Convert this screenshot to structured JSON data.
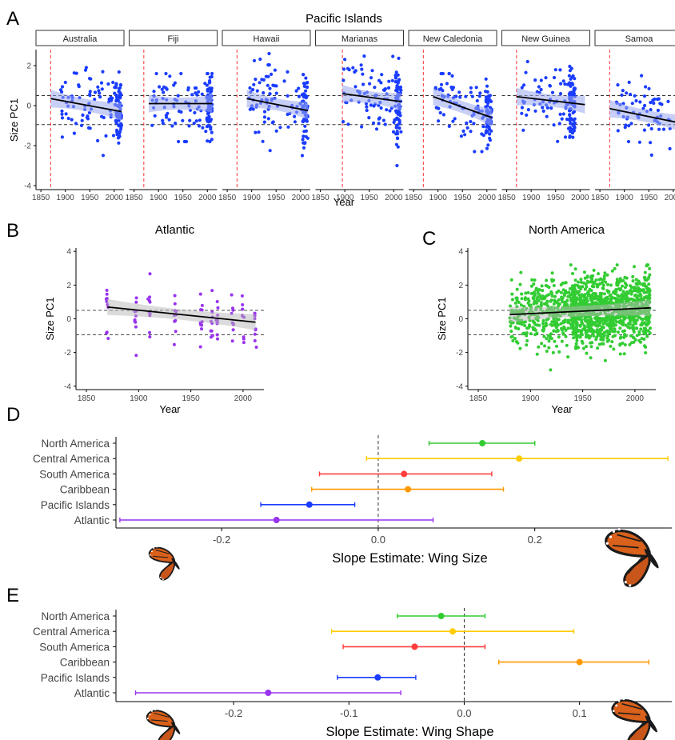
{
  "panels": {
    "A": "A",
    "B": "B",
    "C": "C",
    "D": "D",
    "E": "E"
  },
  "colors": {
    "North America": "#33cc33",
    "Central America": "#ffcc00",
    "South America": "#ff3b3b",
    "Caribbean": "#ff9900",
    "Pacific Islands": "#1a3cff",
    "Atlantic": "#9933ee",
    "threshold_line": "#ff3333",
    "ci_pacific": "#9aa8ee",
    "ci_other": "#b8b8b8"
  },
  "chart_data": [
    {
      "id": "A",
      "type": "scatter",
      "title": "Pacific Islands",
      "xlabel": "Year",
      "ylabel": "Size PC1",
      "xlim": [
        1840,
        2020
      ],
      "ylim": [
        -4.2,
        2.8
      ],
      "xticks": [
        "1850",
        "1900",
        "1950",
        "2000"
      ],
      "yticks": [
        "2",
        "0",
        "-2",
        "-4"
      ],
      "hlines": [
        0.5,
        -0.95
      ],
      "facets": [
        {
          "name": "Australia",
          "vline": 1870,
          "fit": [
            [
              1870,
              0.35
            ],
            [
              2015,
              -0.3
            ]
          ],
          "xmin": 1890,
          "xmax": 2015,
          "ymin": -3.6,
          "ymax": 1.9
        },
        {
          "name": "Fiji",
          "vline": 1870,
          "fit": [
            [
              1880,
              0.1
            ],
            [
              2010,
              0.1
            ]
          ],
          "xmin": 1880,
          "xmax": 2010,
          "ymin": -1.8,
          "ymax": 1.6
        },
        {
          "name": "Hawaii",
          "vline": 1870,
          "fit": [
            [
              1890,
              0.35
            ],
            [
              2015,
              -0.25
            ]
          ],
          "xmin": 1895,
          "xmax": 2015,
          "ymin": -2.9,
          "ymax": 2.6
        },
        {
          "name": "Marianas",
          "vline": 1895,
          "fit": [
            [
              1895,
              0.6
            ],
            [
              2015,
              0.2
            ]
          ],
          "xmin": 1895,
          "xmax": 2015,
          "ymin": -3.0,
          "ymax": 2.5
        },
        {
          "name": "New Caledonia",
          "vline": 1870,
          "fit": [
            [
              1890,
              0.45
            ],
            [
              2010,
              -0.6
            ]
          ],
          "xmin": 1890,
          "xmax": 2010,
          "ymin": -2.3,
          "ymax": 1.6
        },
        {
          "name": "New Guinea",
          "vline": 1870,
          "fit": [
            [
              1870,
              0.45
            ],
            [
              2010,
              0.05
            ]
          ],
          "xmin": 1880,
          "xmax": 1990,
          "ymin": -2.6,
          "ymax": 2.2
        },
        {
          "name": "Samoa",
          "vline": 1870,
          "fit": [
            [
              1870,
              -0.15
            ],
            [
              2020,
              -0.9
            ]
          ],
          "xmin": 1880,
          "xmax": 2020,
          "ymin": -2.9,
          "ymax": 1.9
        }
      ]
    },
    {
      "id": "B",
      "type": "scatter",
      "title": "Atlantic",
      "xlabel": "Year",
      "ylabel": "Size PC1",
      "xlim": [
        1840,
        2020
      ],
      "ylim": [
        -4.2,
        4.2
      ],
      "xticks": [
        "1850",
        "1900",
        "1950",
        "2000"
      ],
      "yticks": [
        "4",
        "2",
        "0",
        "-2",
        "-4"
      ],
      "hlines": [
        0.5,
        -0.95
      ],
      "fit": [
        [
          1870,
          0.7
        ],
        [
          2012,
          -0.2
        ]
      ]
    },
    {
      "id": "C",
      "type": "scatter",
      "title": "North America",
      "xlabel": "Year",
      "ylabel": "Size PC1",
      "xlim": [
        1840,
        2020
      ],
      "ylim": [
        -4.2,
        4.2
      ],
      "xticks": [
        "1850",
        "1900",
        "1950",
        "2000"
      ],
      "yticks": [
        "4",
        "2",
        "0",
        "-2",
        "-4"
      ],
      "hlines": [
        0.5,
        -0.95
      ],
      "fit": [
        [
          1880,
          0.25
        ],
        [
          2015,
          0.65
        ]
      ]
    },
    {
      "id": "D",
      "type": "scatter",
      "xlabel": "Slope Estimate: Wing Size",
      "xlim": [
        -0.335,
        0.375
      ],
      "xticks": [
        -0.2,
        0.0,
        0.2
      ],
      "xtick_labels": [
        "-0.2",
        "0.0",
        "0.2"
      ],
      "categories": [
        "North America",
        "Central America",
        "South America",
        "Caribbean",
        "Pacific Islands",
        "Atlantic"
      ],
      "estimates": [
        0.133,
        0.18,
        0.033,
        0.038,
        -0.088,
        -0.13
      ],
      "ci_low": [
        0.065,
        -0.015,
        -0.075,
        -0.085,
        -0.15,
        -0.33
      ],
      "ci_high": [
        0.2,
        0.37,
        0.145,
        0.16,
        -0.03,
        0.07
      ]
    },
    {
      "id": "E",
      "type": "scatter",
      "xlabel": "Slope Estimate: Wing Shape",
      "xlim": [
        -0.302,
        0.18
      ],
      "xticks": [
        -0.2,
        -0.1,
        0.0,
        0.1
      ],
      "xtick_labels": [
        "-0.2",
        "-0.1",
        "0.0",
        "0.1"
      ],
      "categories": [
        "North America",
        "Central America",
        "South America",
        "Caribbean",
        "Pacific Islands",
        "Atlantic"
      ],
      "estimates": [
        -0.02,
        -0.01,
        -0.043,
        0.1,
        -0.075,
        -0.17
      ],
      "ci_low": [
        -0.058,
        -0.115,
        -0.105,
        0.03,
        -0.11,
        -0.285
      ],
      "ci_high": [
        0.018,
        0.095,
        0.018,
        0.16,
        -0.042,
        -0.055
      ]
    }
  ]
}
